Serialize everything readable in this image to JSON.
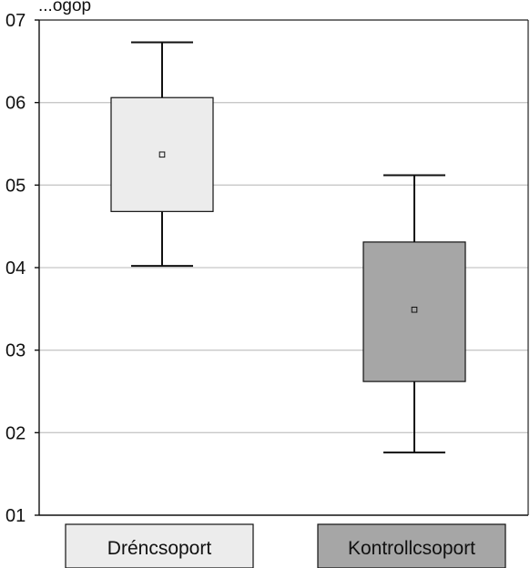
{
  "top_text": "...ogop",
  "chart_data": {
    "type": "box",
    "title": "",
    "xlabel": "",
    "ylabel": "",
    "ylim": [
      0.01,
      0.07
    ],
    "yticks": [
      {
        "value": 0.07,
        "label": "07"
      },
      {
        "value": 0.06,
        "label": "06"
      },
      {
        "value": 0.05,
        "label": "05"
      },
      {
        "value": 0.04,
        "label": "04"
      },
      {
        "value": 0.03,
        "label": "03"
      },
      {
        "value": 0.02,
        "label": "02"
      },
      {
        "value": 0.01,
        "label": "01"
      }
    ],
    "grid": "horizontal",
    "legend": "bottom",
    "groups": [
      {
        "name": "Dréncsoport",
        "color": "#ececec",
        "whisker_low": 0.0402,
        "q1": 0.0468,
        "mean": 0.0537,
        "q3": 0.0606,
        "whisker_high": 0.0673
      },
      {
        "name": "Kontrollcsoport",
        "color": "#a6a6a6",
        "whisker_low": 0.0176,
        "q1": 0.0262,
        "mean": 0.0349,
        "q3": 0.0431,
        "whisker_high": 0.0512
      }
    ]
  }
}
